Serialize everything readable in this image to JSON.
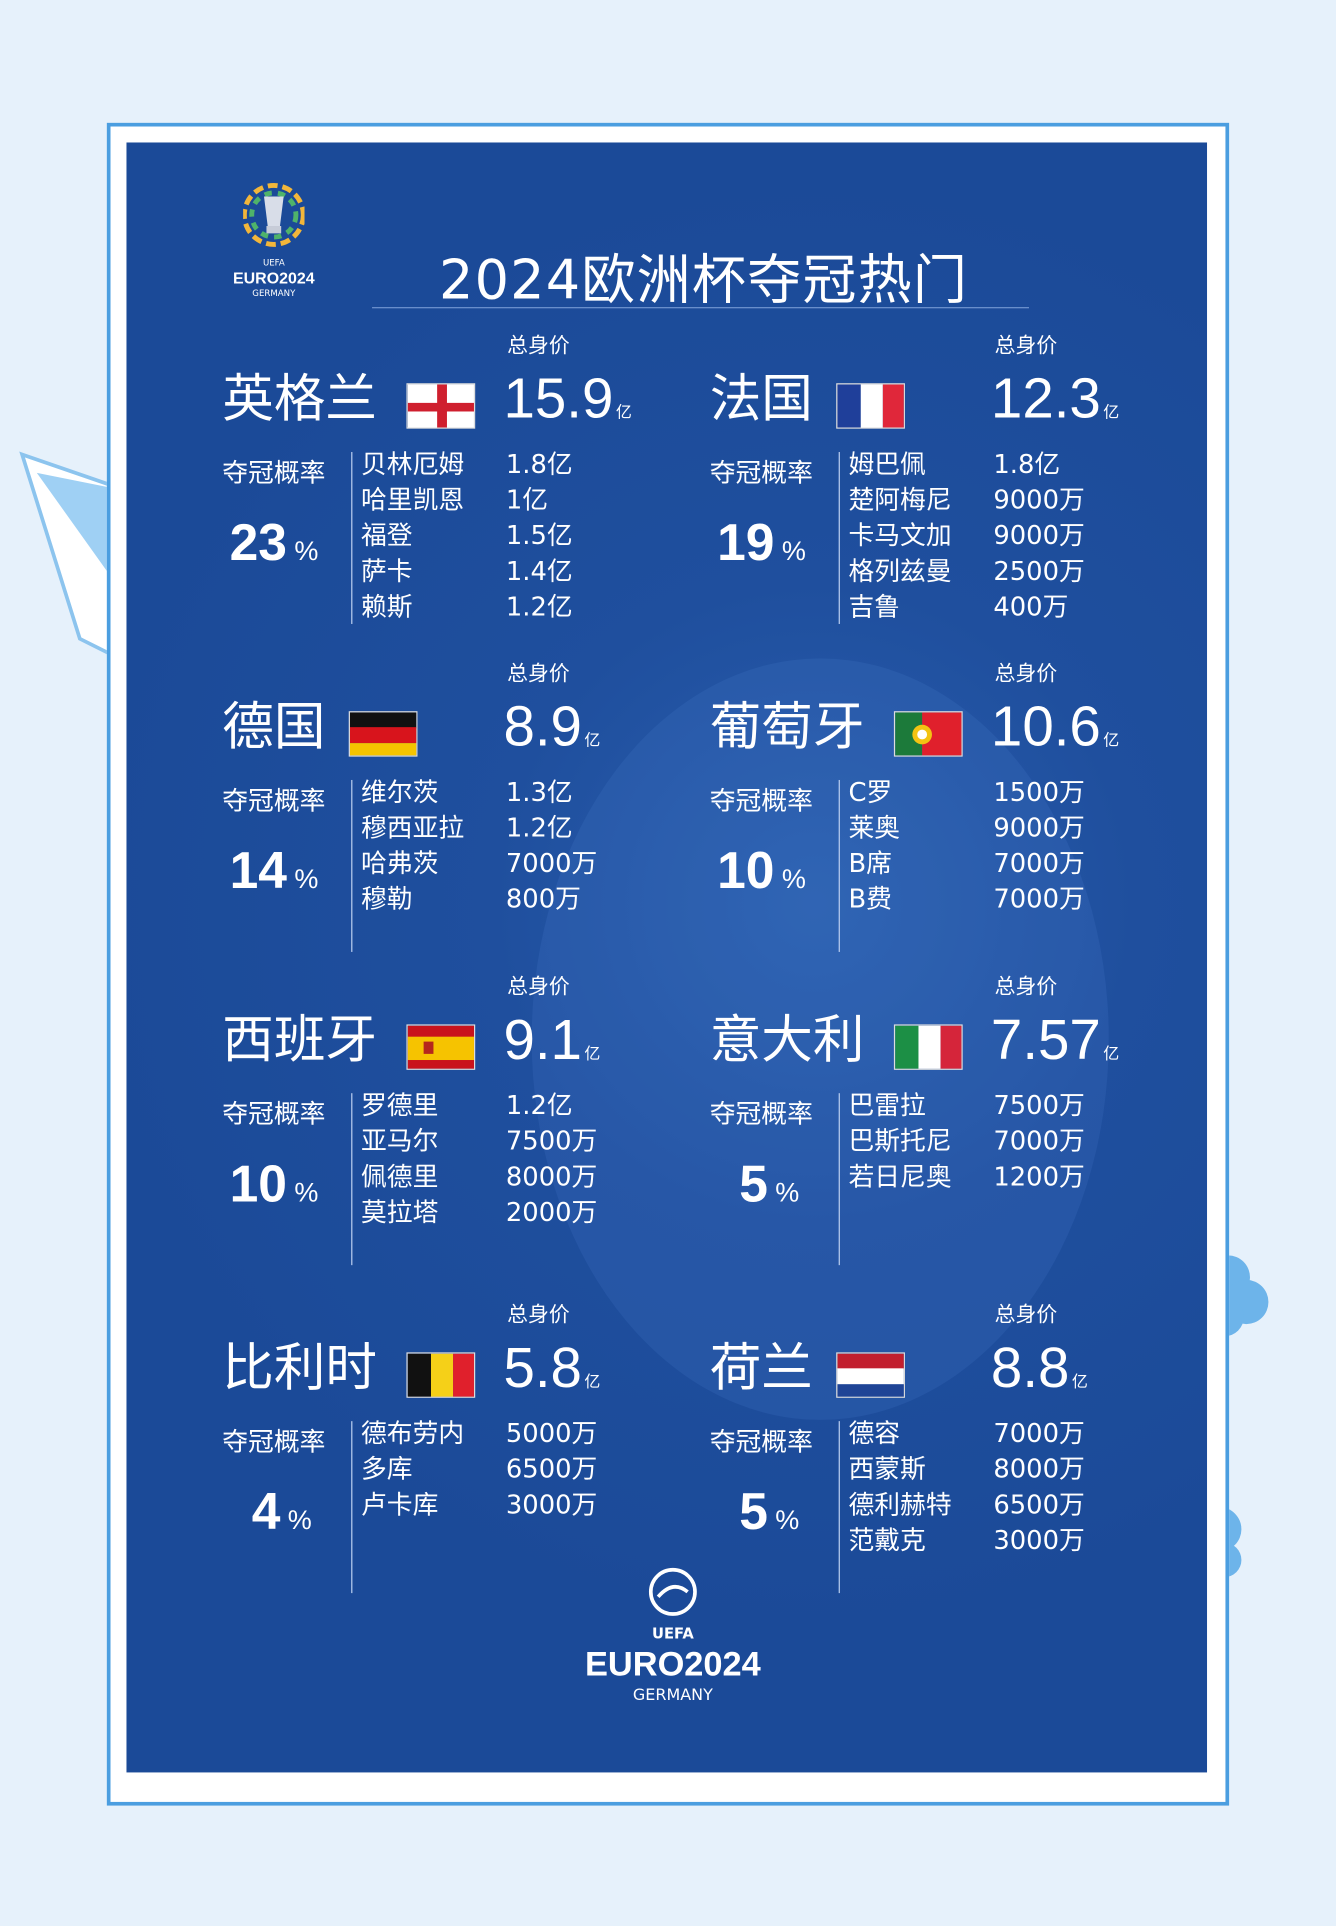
{
  "title": "2024欧洲杯夺冠热门",
  "logo_top": {
    "brand": "EURO2024",
    "sub": "GERMANY",
    "org": "UEFA"
  },
  "logo_bottom": {
    "brand": "EURO2024",
    "sub": "GERMANY",
    "org": "UEFA"
  },
  "labels": {
    "total_value": "总身价",
    "win_prob": "夺冠概率",
    "unit": "亿",
    "percent": "%"
  },
  "colors": {
    "panel": "#1d4f9f",
    "frame": "#4b9ee0",
    "background": "#e6f1fb"
  },
  "teams": [
    {
      "name": "英格兰",
      "flag": "england",
      "total_value": "15.9",
      "probability": "23",
      "players": [
        {
          "name": "贝林厄姆",
          "value": "1.8亿"
        },
        {
          "name": "哈里凯恩",
          "value": "1亿"
        },
        {
          "name": "福登",
          "value": "1.5亿"
        },
        {
          "name": "萨卡",
          "value": "1.4亿"
        },
        {
          "name": "赖斯",
          "value": "1.2亿"
        }
      ]
    },
    {
      "name": "法国",
      "flag": "france",
      "total_value": "12.3",
      "probability": "19",
      "players": [
        {
          "name": "姆巴佩",
          "value": "1.8亿"
        },
        {
          "name": "楚阿梅尼",
          "value": "9000万"
        },
        {
          "name": "卡马文加",
          "value": "9000万"
        },
        {
          "name": "格列兹曼",
          "value": "2500万"
        },
        {
          "name": "吉鲁",
          "value": "400万"
        }
      ]
    },
    {
      "name": "德国",
      "flag": "germany",
      "total_value": "8.9",
      "probability": "14",
      "players": [
        {
          "name": "维尔茨",
          "value": "1.3亿"
        },
        {
          "name": "穆西亚拉",
          "value": "1.2亿"
        },
        {
          "name": "哈弗茨",
          "value": "7000万"
        },
        {
          "name": "穆勒",
          "value": "800万"
        }
      ]
    },
    {
      "name": "葡萄牙",
      "flag": "portugal",
      "total_value": "10.6",
      "probability": "10",
      "players": [
        {
          "name": "C罗",
          "value": "1500万"
        },
        {
          "name": "莱奥",
          "value": "9000万"
        },
        {
          "name": "B席",
          "value": "7000万"
        },
        {
          "name": "B费",
          "value": "7000万"
        }
      ]
    },
    {
      "name": "西班牙",
      "flag": "spain",
      "total_value": "9.1",
      "probability": "10",
      "players": [
        {
          "name": "罗德里",
          "value": "1.2亿"
        },
        {
          "name": "亚马尔",
          "value": "7500万"
        },
        {
          "name": "佩德里",
          "value": "8000万"
        },
        {
          "name": "莫拉塔",
          "value": "2000万"
        }
      ]
    },
    {
      "name": "意大利",
      "flag": "italy",
      "total_value": "7.57",
      "probability": "5",
      "players": [
        {
          "name": "巴雷拉",
          "value": "7500万"
        },
        {
          "name": "巴斯托尼",
          "value": "7000万"
        },
        {
          "name": "若日尼奥",
          "value": "1200万"
        }
      ]
    },
    {
      "name": "比利时",
      "flag": "belgium",
      "total_value": "5.8",
      "probability": "4",
      "players": [
        {
          "name": "德布劳内",
          "value": "5000万"
        },
        {
          "name": "多库",
          "value": "6500万"
        },
        {
          "name": "卢卡库",
          "value": "3000万"
        }
      ]
    },
    {
      "name": "荷兰",
      "flag": "netherlands",
      "total_value": "8.8",
      "probability": "5",
      "players": [
        {
          "name": "德容",
          "value": "7000万"
        },
        {
          "name": "西蒙斯",
          "value": "8000万"
        },
        {
          "name": "德利赫特",
          "value": "6500万"
        },
        {
          "name": "范戴克",
          "value": "3000万"
        }
      ]
    }
  ]
}
